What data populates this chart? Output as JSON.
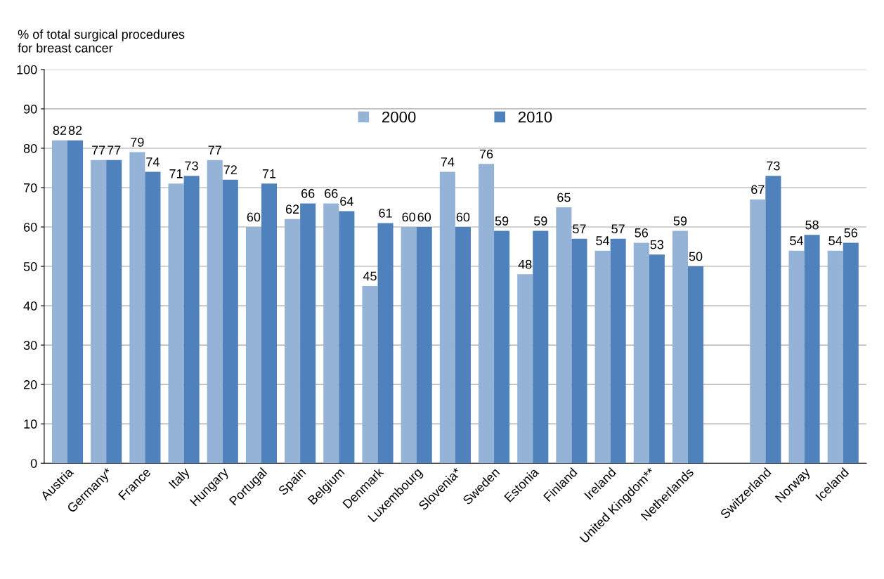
{
  "chart_data": {
    "type": "bar",
    "ylabel": "% of total surgical procedures\nfor breast cancer",
    "categories": [
      "Austria",
      "Germany*",
      "France",
      "Italy",
      "Hungary",
      "Portugal",
      "Spain",
      "Belgium",
      "Denmark",
      "Luxembourg",
      "Slovenia*",
      "Sweden",
      "Estonia",
      "Finland",
      "Ireland",
      "United Kingdom**",
      "Netherlands",
      null,
      "Switzerland",
      "Norway",
      "Iceland"
    ],
    "series": [
      {
        "name": "2000",
        "color": "#95b3d7",
        "values": [
          82,
          77,
          79,
          71,
          77,
          60,
          62,
          66,
          45,
          60,
          74,
          76,
          48,
          65,
          54,
          56,
          59,
          null,
          67,
          54,
          54
        ]
      },
      {
        "name": "2010",
        "color": "#4f81bd",
        "values": [
          82,
          77,
          74,
          73,
          72,
          71,
          66,
          64,
          61,
          60,
          60,
          59,
          59,
          57,
          57,
          53,
          50,
          null,
          73,
          58,
          56
        ]
      }
    ],
    "ylim": [
      0,
      100
    ],
    "yticks": [
      0,
      10,
      20,
      30,
      40,
      50,
      60,
      70,
      80,
      90,
      100
    ],
    "grid": "y",
    "legend": "top",
    "data_labels": true
  }
}
